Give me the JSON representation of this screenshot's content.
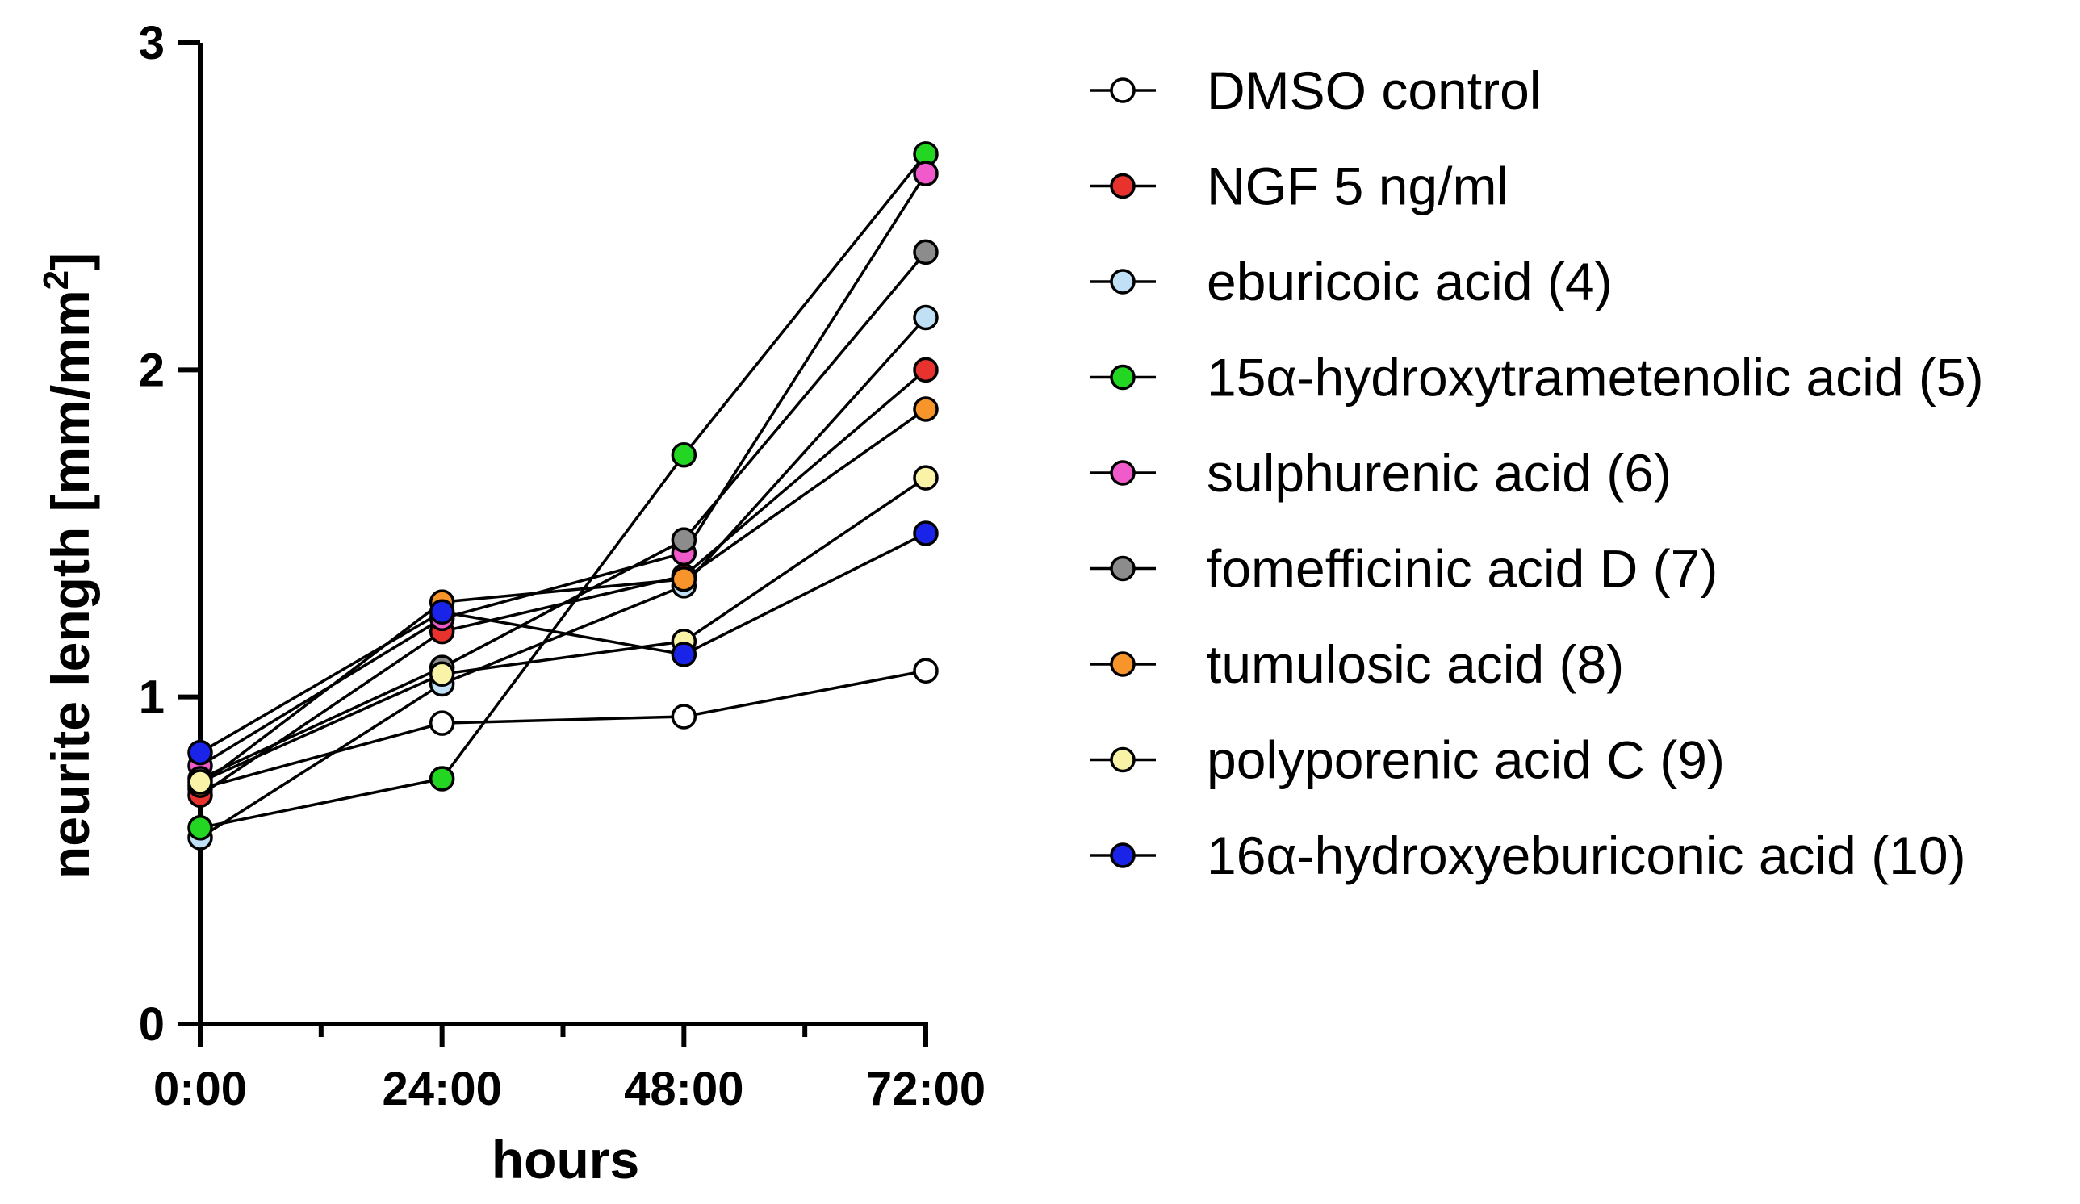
{
  "chart_data": {
    "type": "line",
    "title": "",
    "xlabel": "hours",
    "ylabel": "neurite length [mm/mm²]",
    "categories": [
      "0:00",
      "24:00",
      "48:00",
      "72:00"
    ],
    "x_hours": [
      0,
      24,
      48,
      72
    ],
    "ylim": [
      0,
      3
    ],
    "yticks": [
      "0",
      "1",
      "2",
      "3"
    ],
    "ytick_values": [
      0,
      1,
      2,
      3
    ],
    "grid": false,
    "legend_position": "right",
    "series": [
      {
        "name": "DMSO control",
        "color": "#ffffff",
        "values": [
          0.72,
          0.92,
          0.94,
          1.08
        ]
      },
      {
        "name": "NGF 5 ng/ml",
        "color": "#e8322d",
        "values": [
          0.7,
          1.2,
          1.37,
          2.0
        ]
      },
      {
        "name": "eburicoic acid (4)",
        "color": "#bfe0f5",
        "values": [
          0.57,
          1.04,
          1.34,
          2.16
        ]
      },
      {
        "name": "15α-hydroxytrametenolic acid (5)",
        "color": "#22d622",
        "values": [
          0.6,
          0.75,
          1.74,
          2.66
        ]
      },
      {
        "name": "sulphurenic acid (6)",
        "color": "#f05acb",
        "values": [
          0.79,
          1.24,
          1.44,
          2.6
        ]
      },
      {
        "name": "fomefficinic acid D (7)",
        "color": "#8c8c8c",
        "values": [
          0.75,
          1.09,
          1.48,
          2.36
        ]
      },
      {
        "name": "tumulosic acid (8)",
        "color": "#f7952a",
        "values": [
          0.73,
          1.29,
          1.36,
          1.88
        ]
      },
      {
        "name": "polyporenic acid C (9)",
        "color": "#f8f3a6",
        "values": [
          0.74,
          1.07,
          1.17,
          1.67
        ]
      },
      {
        "name": "16α-hydroxyeburiconic acid (10)",
        "color": "#1a24e8",
        "values": [
          0.83,
          1.26,
          1.13,
          1.5
        ]
      }
    ]
  }
}
